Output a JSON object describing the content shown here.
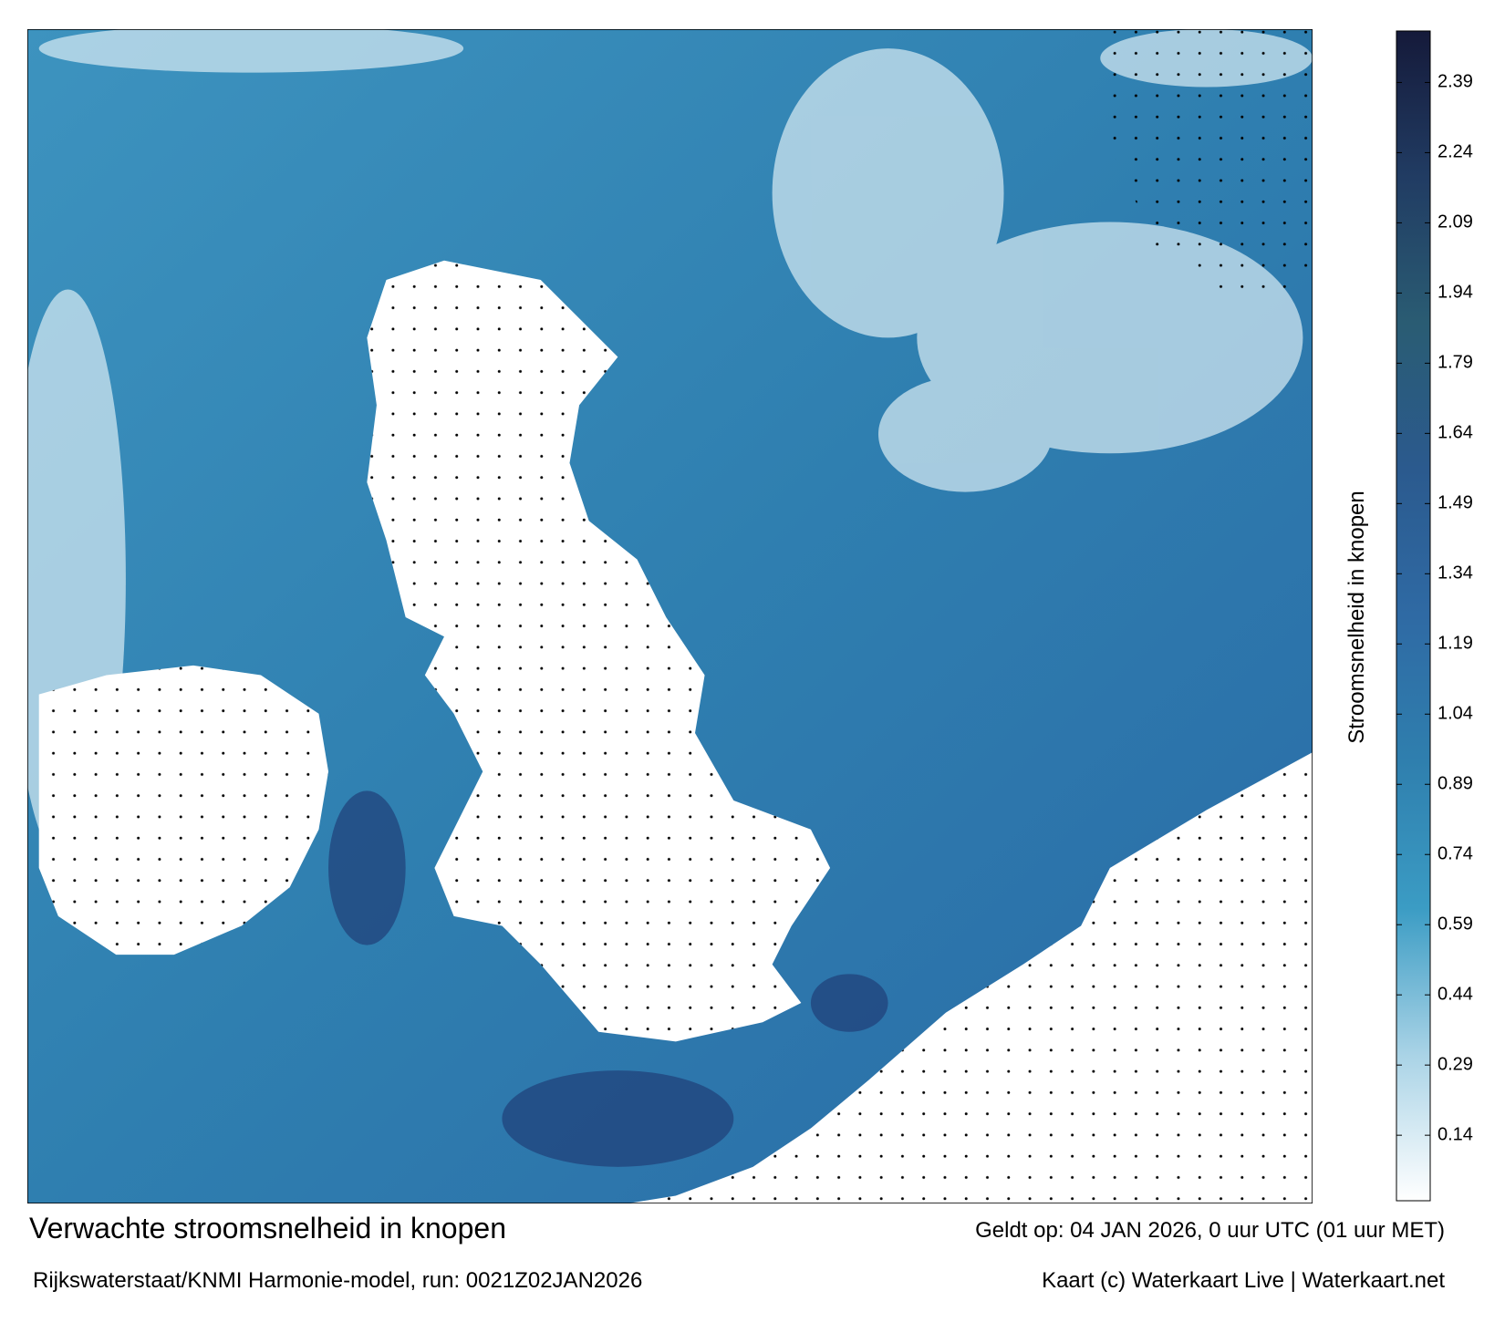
{
  "title": "Verwachte stroomsnelheid in knopen",
  "subtitle": "Rijkswaterstaat/KNMI Harmonie-model, run: 0021Z02JAN2026",
  "valid_time": "Geldt op: 04 JAN 2026, 0 uur UTC (01 uur MET)",
  "credit": "Kaart (c) Waterkaart Live | Waterkaart.net",
  "colorbar": {
    "label": "Stroomsnelheid in knopen",
    "lim": [
      0,
      2.5
    ],
    "ticks": [
      0.14,
      0.29,
      0.44,
      0.59,
      0.74,
      0.89,
      1.04,
      1.19,
      1.34,
      1.49,
      1.64,
      1.79,
      1.94,
      2.09,
      2.24,
      2.39
    ],
    "colors": [
      "#ffffff",
      "#a9d3e6",
      "#3b9cc4",
      "#2f7fae",
      "#2f6aa4",
      "#2b5a8e",
      "#2a5c73",
      "#213c63",
      "#151a3a"
    ]
  }
}
